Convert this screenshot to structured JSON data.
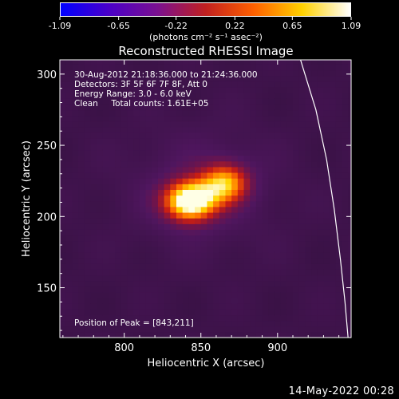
{
  "colorbar": {
    "ticks": [
      "-1.09",
      "-0.65",
      "-0.22",
      "0.22",
      "0.65",
      "1.09"
    ],
    "tick_values": [
      -1.09,
      -0.65,
      -0.22,
      0.22,
      0.65,
      1.09
    ],
    "range": [
      -1.09,
      1.09
    ],
    "unit": "(photons cm⁻² s⁻¹ asec⁻²)",
    "colormap": "blue-purple-red-yellow-white",
    "colors": [
      "#0000ff",
      "#4a00c8",
      "#7a1090",
      "#c02020",
      "#ff6000",
      "#ffd000",
      "#ffffff"
    ]
  },
  "chart_data": {
    "type": "heatmap",
    "title": "Reconstructed RHESSI Image",
    "xlabel": "Heliocentric X (arcsec)",
    "ylabel": "Heliocentric Y (arcsec)",
    "xlim": [
      758,
      948
    ],
    "ylim": [
      115,
      310
    ],
    "xticks": [
      800,
      850,
      900
    ],
    "yticks": [
      150,
      200,
      250,
      300
    ],
    "grid": false,
    "annotations": [
      "30-Aug-2012 21:18:36.000 to 21:24:36.000",
      "Detectors: 3F 5F 6F 7F 8F, Att 0",
      "Energy Range: 3.0 - 6.0 keV",
      "Clean     Total counts: 1.61E+05"
    ],
    "peak_label": "Position of Peak = [843,211]",
    "peak": {
      "x": 843,
      "y": 211
    },
    "sources": [
      {
        "x": 843,
        "y": 211,
        "intensity": 1.0,
        "sigma_x": 12,
        "sigma_y": 10
      },
      {
        "x": 866,
        "y": 224,
        "intensity": 0.65,
        "sigma_x": 11,
        "sigma_y": 10
      }
    ],
    "limb_curve": [
      {
        "x": 915,
        "y": 310
      },
      {
        "x": 925,
        "y": 275
      },
      {
        "x": 932,
        "y": 240
      },
      {
        "x": 937,
        "y": 205
      },
      {
        "x": 941,
        "y": 170
      },
      {
        "x": 944,
        "y": 140
      },
      {
        "x": 946,
        "y": 115
      }
    ]
  },
  "footer": {
    "date": "14-May-2022 00:28"
  }
}
